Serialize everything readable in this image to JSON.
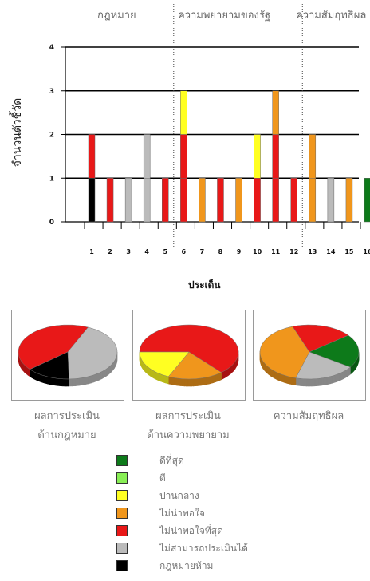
{
  "colors": {
    "best": "#0d7a1a",
    "good": "#88ee55",
    "moderate": "#ffff22",
    "unsatisfactory": "#f0961c",
    "very_unsatisfactory": "#e81818",
    "not_assessable": "#bbbbbb",
    "legal_prohibited": "#000000"
  },
  "sections": [
    "กฎหมาย",
    "ความพยายามของรัฐ",
    "ความสัมฤทธิผล"
  ],
  "chart_data": [
    {
      "type": "bar",
      "stacked": true,
      "ylabel": "จำนวนตัวชี้วัด",
      "xlabel": "ประเด็น",
      "categories": [
        "1",
        "2",
        "3",
        "4",
        "5",
        "6",
        "7",
        "8",
        "9",
        "10",
        "11",
        "12",
        "13",
        "14",
        "15",
        "16"
      ],
      "ylim": [
        0,
        4
      ],
      "yticks": [
        0,
        1,
        2,
        3,
        4
      ],
      "grid": true,
      "stacks": [
        [
          "legal_prohibited",
          "very_unsatisfactory"
        ],
        [
          "very_unsatisfactory"
        ],
        [
          "not_assessable"
        ],
        [
          "not_assessable",
          "not_assessable"
        ],
        [
          "very_unsatisfactory"
        ],
        [
          "very_unsatisfactory",
          "very_unsatisfactory",
          "moderate"
        ],
        [
          "unsatisfactory"
        ],
        [
          "very_unsatisfactory"
        ],
        [
          "unsatisfactory"
        ],
        [
          "very_unsatisfactory",
          "moderate"
        ],
        [
          "very_unsatisfactory",
          "very_unsatisfactory",
          "unsatisfactory"
        ],
        [
          "very_unsatisfactory"
        ],
        [
          "unsatisfactory",
          "unsatisfactory"
        ],
        [
          "not_assessable"
        ],
        [
          "unsatisfactory"
        ],
        [
          "best"
        ]
      ]
    },
    {
      "type": "pie",
      "title_lines": [
        "ผลการประเมิน",
        "ด้านกฎหมาย"
      ],
      "slices": [
        {
          "key": "very_unsatisfactory",
          "value": 3
        },
        {
          "key": "not_assessable",
          "value": 3
        },
        {
          "key": "legal_prohibited",
          "value": 1
        }
      ]
    },
    {
      "type": "pie",
      "title_lines": [
        "ผลการประเมิน",
        "ด้านความพยายาม"
      ],
      "slices": [
        {
          "key": "very_unsatisfactory",
          "value": 7
        },
        {
          "key": "unsatisfactory",
          "value": 2
        },
        {
          "key": "moderate",
          "value": 2
        }
      ]
    },
    {
      "type": "pie",
      "title_lines": [
        "ความสัมฤทธิผล"
      ],
      "slices": [
        {
          "key": "very_unsatisfactory",
          "value": 1
        },
        {
          "key": "best",
          "value": 1
        },
        {
          "key": "not_assessable",
          "value": 1
        },
        {
          "key": "unsatisfactory",
          "value": 2
        }
      ]
    }
  ],
  "legend": [
    {
      "key": "best",
      "label": "ดีที่สุด"
    },
    {
      "key": "good",
      "label": "ดี"
    },
    {
      "key": "moderate",
      "label": " ปานกลาง"
    },
    {
      "key": "unsatisfactory",
      "label": "ไม่น่าพอใจ"
    },
    {
      "key": "very_unsatisfactory",
      "label": "ไม่น่าพอใจที่สุด"
    },
    {
      "key": "not_assessable",
      "label": "ไม่สามารถประเมินได้"
    },
    {
      "key": "legal_prohibited",
      "label": "กฎหมายห้าม"
    }
  ]
}
